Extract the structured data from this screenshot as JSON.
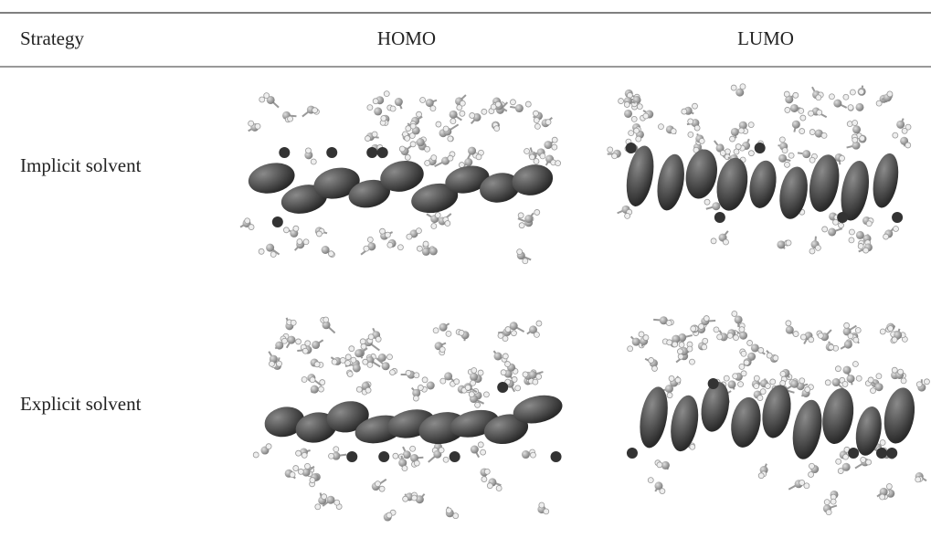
{
  "table": {
    "header": [
      "Strategy",
      "HOMO",
      "LUMO"
    ],
    "rows": [
      [
        "Implicit solvent"
      ],
      [
        "Explicit solvent"
      ]
    ]
  }
}
